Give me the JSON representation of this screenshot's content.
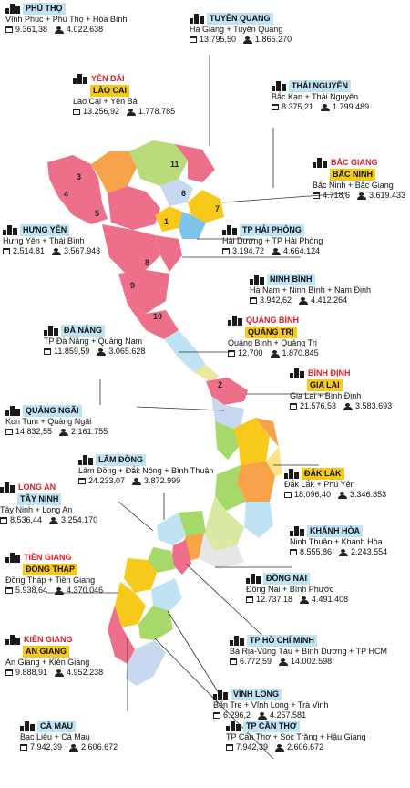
{
  "regions": [
    {
      "id": "phu-tho",
      "tags": [
        {
          "text": "PHÚ THỌ",
          "style": "blue"
        }
      ],
      "merge": "Vĩnh Phúc + Phú Thọ + Hòa Bình",
      "area": "9.361,38",
      "population": "4.022.638"
    },
    {
      "id": "tuyen-quang",
      "tags": [
        {
          "text": "TUYÊN QUANG",
          "style": "blue"
        }
      ],
      "merge": "Hà Giang + Tuyên Quang",
      "area": "13.795,50",
      "population": "1.865.270"
    },
    {
      "id": "yen-bai-lao-cai",
      "tags": [
        {
          "text": "YÊN BÁI",
          "style": "red"
        },
        {
          "text": "LÀO CAI",
          "style": "yellow"
        }
      ],
      "merge": "Lào Cai + Yên Bái",
      "area": "13.256,92",
      "population": "1.778.785"
    },
    {
      "id": "thai-nguyen",
      "tags": [
        {
          "text": "THÁI NGUYÊN",
          "style": "blue"
        }
      ],
      "merge": "Bắc Kạn + Thái Nguyên",
      "area": "8.375,21",
      "population": "1.799.489"
    },
    {
      "id": "bac-ninh",
      "tags": [
        {
          "text": "BẮC GIANG",
          "style": "red"
        },
        {
          "text": "BẮC NINH",
          "style": "yellow"
        }
      ],
      "merge": "Bắc Ninh + Bắc Giang",
      "area": "4.718,6",
      "population": "3.619.433"
    },
    {
      "id": "hung-yen",
      "tags": [
        {
          "text": "HƯNG YÊN",
          "style": "blue"
        }
      ],
      "merge": "Hưng Yên + Thái Bình",
      "area": "2.514,81",
      "population": "3.567.943"
    },
    {
      "id": "hai-phong",
      "tags": [
        {
          "text": "TP HẢI PHÒNG",
          "style": "blue"
        }
      ],
      "merge": "Hải Dương + TP Hải Phòng",
      "area": "3.194,72",
      "population": "4.664.124"
    },
    {
      "id": "ninh-binh",
      "tags": [
        {
          "text": "NINH BÌNH",
          "style": "blue"
        }
      ],
      "merge": "Hà Nam + Ninh Bình + Nam Định",
      "area": "3.942,62",
      "population": "4.412.264"
    },
    {
      "id": "da-nang",
      "tags": [
        {
          "text": "ĐÀ NẴNG",
          "style": "blue"
        }
      ],
      "merge": "TP Đà Nẵng + Quảng Nam",
      "area": "11.859,59",
      "population": "3.065.628"
    },
    {
      "id": "quang-tri",
      "tags": [
        {
          "text": "QUẢNG BÌNH",
          "style": "red"
        },
        {
          "text": "QUẢNG TRỊ",
          "style": "yellow"
        }
      ],
      "merge": "Quảng Bình + Quảng Trị",
      "area": "12.700",
      "population": "1.870.845"
    },
    {
      "id": "gia-lai",
      "tags": [
        {
          "text": "BÌNH ĐỊNH",
          "style": "red"
        },
        {
          "text": "GIA LAI",
          "style": "yellow"
        }
      ],
      "merge": "Gia Lai + Bình Định",
      "area": "21.576,53",
      "population": "3.583.693"
    },
    {
      "id": "quang-ngai",
      "tags": [
        {
          "text": "QUẢNG NGÃI",
          "style": "blue"
        }
      ],
      "merge": "Kon Tum + Quảng Ngãi",
      "area": "14.832,55",
      "population": "2.161.755"
    },
    {
      "id": "lam-dong",
      "tags": [
        {
          "text": "LÂM ĐỒNG",
          "style": "blue"
        }
      ],
      "merge": "Lâm Đồng + Đắk Nông + Bình Thuận",
      "area": "24.233,07",
      "population": "3.872.999"
    },
    {
      "id": "dak-lak",
      "tags": [
        {
          "text": "ĐẮK LẮK",
          "style": "yellow"
        }
      ],
      "merge": "Đắk Lắk + Phú Yên",
      "area": "18.096,40",
      "population": "3.346.853"
    },
    {
      "id": "tay-ninh",
      "tags": [
        {
          "text": "LONG AN",
          "style": "red"
        },
        {
          "text": "TÂY NINH",
          "style": "blue"
        }
      ],
      "merge": "Tây Ninh + Long An",
      "area": "8.536,44",
      "population": "3.254.170"
    },
    {
      "id": "khanh-hoa",
      "tags": [
        {
          "text": "KHÁNH HÒA",
          "style": "blue"
        }
      ],
      "merge": "Ninh Thuận + Khánh Hòa",
      "area": "8.555,86",
      "population": "2.243.554"
    },
    {
      "id": "dong-thap",
      "tags": [
        {
          "text": "TIỀN GIANG",
          "style": "red"
        },
        {
          "text": "ĐỒNG THÁP",
          "style": "yellow"
        }
      ],
      "merge": "Đồng Tháp + Tiền Giang",
      "area": "5.938,64",
      "population": "4.370.046"
    },
    {
      "id": "dong-nai",
      "tags": [
        {
          "text": "ĐỒNG NAI",
          "style": "blue"
        }
      ],
      "merge": "Đồng Nai + Bình Phước",
      "area": "12.737,18",
      "population": "4.491.408"
    },
    {
      "id": "an-giang",
      "tags": [
        {
          "text": "KIÊN GIANG",
          "style": "red"
        },
        {
          "text": "AN GIANG",
          "style": "yellow"
        }
      ],
      "merge": "An Giang + Kiên Giang",
      "area": "9.888,91",
      "population": "4.952.238"
    },
    {
      "id": "ho-chi-minh",
      "tags": [
        {
          "text": "TP HỒ CHÍ MINH",
          "style": "blue"
        }
      ],
      "merge": "Bà Rịa-Vũng Tàu + Bình Dương + TP HCM",
      "area": "6.772,59",
      "population": "14.002.598"
    },
    {
      "id": "vinh-long",
      "tags": [
        {
          "text": "VĨNH LONG",
          "style": "blue"
        }
      ],
      "merge": "Bến Tre + Vĩnh Long + Trà Vinh",
      "area": "6.296,2",
      "population": "4.257.581"
    },
    {
      "id": "ca-mau",
      "tags": [
        {
          "text": "CÀ MAU",
          "style": "blue"
        }
      ],
      "merge": "Bạc Liêu + Cà Mau",
      "area": "7.942,39",
      "population": "2.606.672"
    },
    {
      "id": "can-tho",
      "tags": [
        {
          "text": "TP CẦN THƠ",
          "style": "blue"
        }
      ],
      "merge": "TP Cần Thơ + Sóc Trăng + Hậu Giang",
      "area": "7.942,39",
      "population": "2.606.672"
    }
  ],
  "map_numbers": [
    "1",
    "2",
    "3",
    "4",
    "5",
    "6",
    "7",
    "8",
    "9",
    "10",
    "11"
  ],
  "colors": {
    "tag_blue": "#bfe3f2",
    "tag_yellow": "#f6c91a",
    "tag_red": "#d8202a",
    "province_pink": "#ee6f8a",
    "province_green": "#a6d96a",
    "province_orange": "#f6a34a"
  }
}
